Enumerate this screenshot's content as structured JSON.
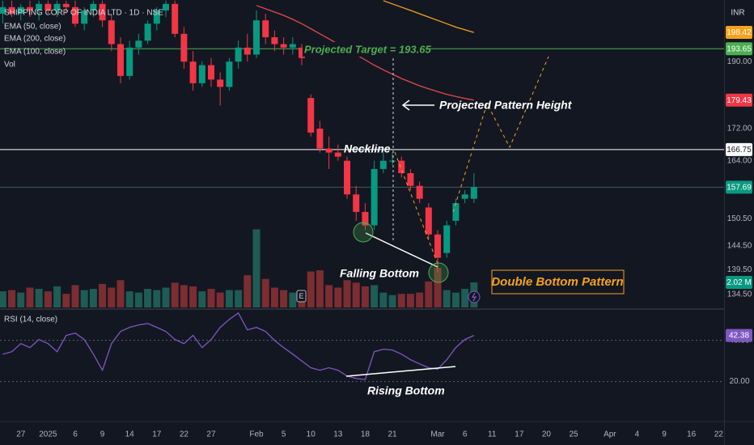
{
  "chart_data": {
    "type": "candlestick",
    "title": "SHIPPING CORP OF INDIA LTD · 1D · NSE",
    "currency": "INR",
    "xlim": [
      -0.3,
      79.6
    ],
    "xticks": [
      {
        "value": 2,
        "label": "27"
      },
      {
        "value": 5,
        "label": "2025"
      },
      {
        "value": 8,
        "label": "6"
      },
      {
        "value": 11,
        "label": "9"
      },
      {
        "value": 14,
        "label": "14"
      },
      {
        "value": 17,
        "label": "17"
      },
      {
        "value": 20,
        "label": "22"
      },
      {
        "value": 23,
        "label": "27"
      },
      {
        "value": 28,
        "label": "Feb"
      },
      {
        "value": 31,
        "label": "5"
      },
      {
        "value": 34,
        "label": "10"
      },
      {
        "value": 37,
        "label": "13"
      },
      {
        "value": 40,
        "label": "18"
      },
      {
        "value": 43,
        "label": "21"
      },
      {
        "value": 48,
        "label": "Mar"
      },
      {
        "value": 51,
        "label": "6"
      },
      {
        "value": 54,
        "label": "11"
      },
      {
        "value": 57,
        "label": "17"
      },
      {
        "value": 60,
        "label": "20"
      },
      {
        "value": 63,
        "label": "25"
      },
      {
        "value": 67,
        "label": "Apr"
      },
      {
        "value": 70,
        "label": "4"
      },
      {
        "value": 73,
        "label": "9"
      },
      {
        "value": 76,
        "label": "16"
      },
      {
        "value": 79,
        "label": "22"
      }
    ],
    "ylim": [
      131.9,
      208.2
    ],
    "log_scale": true,
    "yticks": [
      {
        "value": 190,
        "label": "190.00"
      },
      {
        "value": 172,
        "label": "172.00"
      },
      {
        "value": 164,
        "label": "164.00"
      },
      {
        "value": 150.5,
        "label": "150.50"
      },
      {
        "value": 144.5,
        "label": "144.50"
      },
      {
        "value": 139.5,
        "label": "139.50"
      },
      {
        "value": 134.5,
        "label": "134.50"
      }
    ],
    "up_color": "#089981",
    "down_color": "#f23645",
    "open": [
      204,
      206,
      204,
      206,
      205,
      207,
      205,
      207,
      206,
      201,
      205,
      207,
      202,
      195,
      186,
      194,
      196,
      201,
      205,
      207,
      198,
      190,
      184,
      189,
      185,
      183,
      190,
      194,
      192,
      202,
      197,
      195,
      194,
      194,
      180,
      172,
      167,
      166,
      164,
      156,
      152,
      149,
      162,
      164,
      164,
      161,
      158,
      153,
      147,
      143,
      150,
      155,
      155
    ],
    "high": [
      208,
      208,
      207,
      208,
      208,
      208,
      208,
      208,
      208,
      206,
      208,
      208,
      204,
      197,
      196,
      198,
      202,
      206,
      208,
      208,
      200,
      193,
      190,
      191,
      187,
      191,
      196,
      198,
      205,
      204,
      199,
      197,
      197,
      195,
      181,
      174,
      170,
      168,
      165,
      158,
      154,
      164,
      166,
      166,
      165,
      162,
      159,
      154,
      148,
      150,
      155,
      157,
      161
    ],
    "low": [
      201,
      203,
      202,
      203,
      202,
      204,
      203,
      204,
      200,
      199,
      203,
      200,
      193,
      184,
      185,
      192,
      195,
      199,
      203,
      197,
      188,
      182,
      183,
      183,
      178,
      182,
      188,
      190,
      191,
      195,
      193,
      192,
      192,
      189,
      170,
      166,
      162,
      164,
      155,
      150,
      148,
      148,
      161,
      163,
      160,
      157,
      154,
      146,
      139,
      142,
      149,
      154,
      154
    ],
    "close": [
      206,
      204,
      206,
      205,
      207,
      205,
      207,
      206,
      201,
      205,
      207,
      202,
      195,
      186,
      194,
      196,
      201,
      205,
      207,
      198,
      190,
      184,
      189,
      185,
      183,
      190,
      194,
      192,
      202,
      197,
      195,
      194,
      195,
      191,
      171,
      167,
      166,
      165,
      156,
      152,
      149,
      162,
      164,
      164,
      161,
      158,
      155,
      147,
      142,
      149,
      154,
      156,
      157.69
    ],
    "series": [
      {
        "name": "EMA (50, close)",
        "color": "#e5484d",
        "values": [
          null,
          null,
          null,
          null,
          null,
          null,
          null,
          null,
          null,
          null,
          null,
          null,
          null,
          null,
          null,
          null,
          null,
          null,
          null,
          null,
          null,
          null,
          null,
          null,
          null,
          null,
          null,
          null,
          206.5,
          205.5,
          204.5,
          203.5,
          202.3,
          201,
          199.5,
          198,
          196.5,
          195,
          193.5,
          192,
          190.5,
          189,
          187.7,
          186.5,
          185.3,
          184.3,
          183.3,
          182.5,
          181.7,
          181,
          180.4,
          179.9,
          179.43
        ]
      },
      {
        "name": "EMA (200, close)",
        "color": "#2962ff",
        "values": [
          null,
          null,
          null,
          null,
          null,
          null,
          null,
          null,
          null,
          null,
          null,
          null,
          null,
          null,
          null,
          null,
          null,
          null,
          null,
          null,
          null,
          null,
          null,
          null,
          null,
          null,
          null,
          null,
          null,
          null,
          null,
          null,
          null,
          null,
          null,
          null,
          null,
          null,
          null,
          null,
          null,
          null,
          null,
          null,
          null,
          null,
          null,
          null,
          null,
          null,
          null,
          null,
          null
        ]
      },
      {
        "name": "EMA (100, close)",
        "color": "#f7a21b",
        "values": [
          null,
          null,
          null,
          null,
          null,
          null,
          null,
          null,
          null,
          null,
          null,
          null,
          null,
          null,
          null,
          null,
          null,
          null,
          null,
          null,
          null,
          null,
          null,
          null,
          null,
          null,
          null,
          null,
          null,
          null,
          null,
          null,
          null,
          null,
          null,
          null,
          null,
          null,
          null,
          null,
          null,
          null,
          208,
          207,
          206,
          205,
          204,
          203,
          202,
          201,
          200,
          199.2,
          198.42
        ]
      }
    ],
    "volume": {
      "name": "Vol",
      "values": [
        1.3,
        1.4,
        1.2,
        1.6,
        1.5,
        1.3,
        1.7,
        1.1,
        1.8,
        1.4,
        1.5,
        1.9,
        1.6,
        2.2,
        1.3,
        1.2,
        1.5,
        1.4,
        1.6,
        2.0,
        1.8,
        1.7,
        1.3,
        1.5,
        1.2,
        1.4,
        1.4,
        2.6,
        6.3,
        2.3,
        1.6,
        1.4,
        1.2,
        1.1,
        2.9,
        3.0,
        1.8,
        1.6,
        2.2,
        2.0,
        1.7,
        1.8,
        1.2,
        1.0,
        1.1,
        1.1,
        1.2,
        2.1,
        3.2,
        1.4,
        1.2,
        1.5,
        2.02
      ],
      "ylim": [
        0,
        24.8
      ],
      "up_color": "#1e5c55",
      "down_color": "#7b2d31",
      "tag": {
        "value": 2.02,
        "label": "2.02 M",
        "color": "#089981"
      }
    },
    "price_tags": [
      {
        "value": 198.42,
        "label": "198.42",
        "color": "#f7a21b",
        "text_color": "#ffffff"
      },
      {
        "value": 193.65,
        "label": "193.65",
        "color": "#4caf50",
        "text_color": "#ffffff",
        "line": "#4caf50"
      },
      {
        "value": 179.43,
        "label": "179.43",
        "color": "#f23645",
        "text_color": "#ffffff"
      },
      {
        "value": 166.75,
        "label": "166.75",
        "color": "#ffffff",
        "text_color": "#131722",
        "line": "#ffffff"
      },
      {
        "value": 157.69,
        "label": "157.69",
        "color": "#089981",
        "text_color": "#ffffff",
        "line": "#3a5e5a"
      }
    ],
    "rsi": {
      "name": "RSI (14, close)",
      "color": "#7e57c2",
      "values": [
        33.3,
        34.5,
        38.4,
        36.5,
        40.4,
        38.4,
        34.5,
        42.4,
        43.5,
        40.4,
        33.3,
        25.5,
        38.4,
        44.3,
        46.3,
        47.5,
        48.2,
        46.3,
        44.3,
        40.4,
        38.4,
        42.4,
        36.5,
        40.4,
        46.3,
        50.2,
        53.3,
        45.1,
        46.3,
        44.3,
        40.0,
        36.5,
        33.3,
        30.0,
        26.7,
        25.5,
        26.7,
        25.5,
        22.7,
        21.5,
        21.0,
        34.5,
        35.7,
        35.3,
        33.3,
        30.6,
        28.6,
        26.7,
        26.0,
        30.6,
        36.5,
        40.4,
        42.38
      ],
      "ylim": [
        1,
        54
      ],
      "yticks": [
        {
          "value": 40,
          "label": "40.00"
        },
        {
          "value": 20,
          "label": "20.00"
        }
      ],
      "tag": {
        "value": 42.38,
        "label": "42.38",
        "color": "#7e57c2"
      }
    },
    "annotations": {
      "target": "Projected Target = 193.65",
      "height": "Projected Pattern Height",
      "neckline": "Neckline",
      "falling": "Falling Bottom",
      "pattern": "Double Bottom Pattern",
      "rising": "Rising Bottom",
      "earnings": "E"
    }
  }
}
